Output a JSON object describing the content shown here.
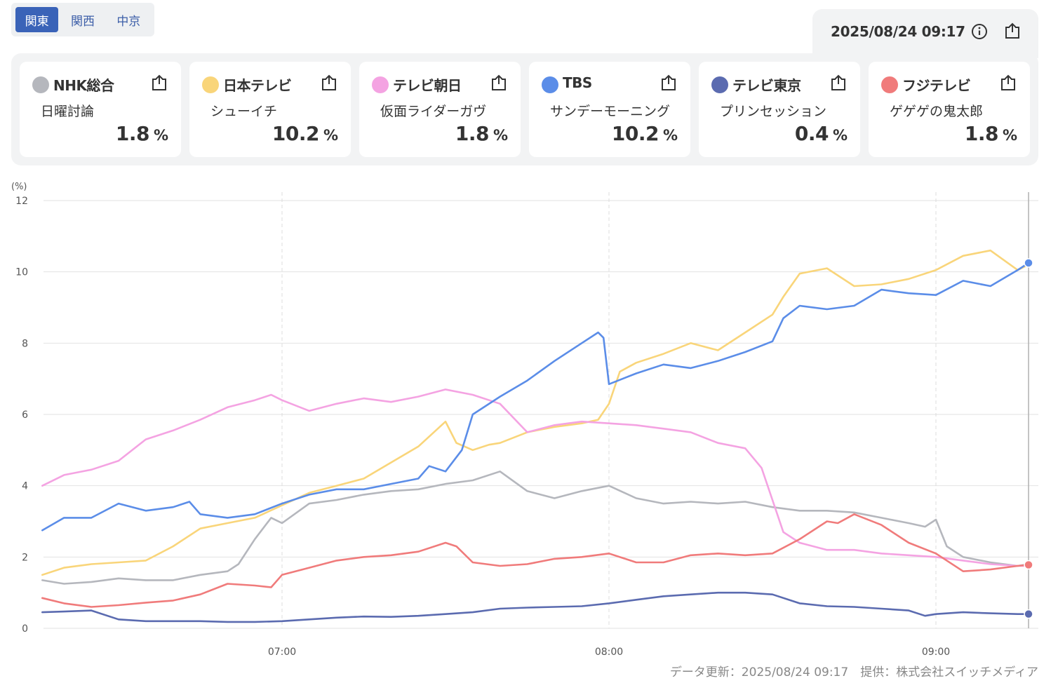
{
  "regions": [
    {
      "label": "関東",
      "active": true
    },
    {
      "label": "関西",
      "active": false
    },
    {
      "label": "中京",
      "active": false
    }
  ],
  "header": {
    "timestamp": "2025/08/24 09:17",
    "info_icon": "info-circle-icon",
    "export_icon": "export-icon"
  },
  "channels": [
    {
      "name": "NHK総合",
      "program": "日曜討論",
      "rating": "1.8",
      "unit": "%",
      "color": "#b5b7bd"
    },
    {
      "name": "日本テレビ",
      "program": "シューイチ",
      "rating": "10.2",
      "unit": "%",
      "color": "#f9d57a"
    },
    {
      "name": "テレビ朝日",
      "program": "仮面ライダーガヴ",
      "rating": "1.8",
      "unit": "%",
      "color": "#f4a3e2"
    },
    {
      "name": "TBS",
      "program": "サンデーモーニング",
      "rating": "10.2",
      "unit": "%",
      "color": "#5b8de8"
    },
    {
      "name": "テレビ東京",
      "program": "プリンセッション",
      "rating": "0.4",
      "unit": "%",
      "color": "#5b6bb0"
    },
    {
      "name": "フジテレビ",
      "program": "ゲゲゲの鬼太郎",
      "rating": "1.8",
      "unit": "%",
      "color": "#f07b7b"
    }
  ],
  "chart_data": {
    "type": "line",
    "y_unit": "(%)",
    "ylim": [
      0,
      12
    ],
    "y_ticks": [
      "0",
      "2",
      "4",
      "6",
      "8",
      "10",
      "12"
    ],
    "x_ticks": [
      {
        "label": "07:00",
        "minute": 420
      },
      {
        "label": "08:00",
        "minute": 480
      },
      {
        "label": "09:00",
        "minute": 540
      }
    ],
    "xlim_minutes": [
      376,
      557
    ],
    "grid": true,
    "series": [
      {
        "name": "NHK総合",
        "color": "#b5b7bd",
        "x": [
          376,
          380,
          385,
          390,
          395,
          400,
          405,
          410,
          412,
          415,
          418,
          420,
          425,
          430,
          435,
          440,
          445,
          450,
          455,
          460,
          465,
          470,
          475,
          480,
          485,
          490,
          495,
          500,
          505,
          510,
          515,
          520,
          525,
          530,
          535,
          538,
          540,
          542,
          545,
          550,
          555,
          557
        ],
        "y": [
          1.35,
          1.25,
          1.3,
          1.4,
          1.35,
          1.35,
          1.5,
          1.6,
          1.8,
          2.5,
          3.1,
          2.95,
          3.5,
          3.6,
          3.75,
          3.85,
          3.9,
          4.05,
          4.15,
          4.4,
          3.85,
          3.65,
          3.85,
          4.0,
          3.65,
          3.5,
          3.55,
          3.5,
          3.55,
          3.4,
          3.3,
          3.3,
          3.25,
          3.1,
          2.95,
          2.85,
          3.05,
          2.3,
          2.0,
          1.85,
          1.75,
          1.8
        ]
      },
      {
        "name": "日本テレビ",
        "color": "#f9d57a",
        "x": [
          376,
          380,
          385,
          390,
          395,
          400,
          405,
          410,
          415,
          420,
          425,
          430,
          435,
          440,
          445,
          450,
          452,
          455,
          458,
          460,
          465,
          470,
          475,
          478,
          480,
          482,
          485,
          490,
          495,
          500,
          505,
          510,
          512,
          515,
          520,
          525,
          530,
          535,
          540,
          545,
          550,
          555,
          557
        ],
        "y": [
          1.5,
          1.7,
          1.8,
          1.85,
          1.9,
          2.3,
          2.8,
          2.95,
          3.1,
          3.45,
          3.8,
          4.0,
          4.2,
          4.65,
          5.1,
          5.8,
          5.2,
          5.0,
          5.15,
          5.2,
          5.5,
          5.65,
          5.75,
          5.85,
          6.3,
          7.2,
          7.45,
          7.7,
          8.0,
          7.8,
          8.3,
          8.8,
          9.3,
          9.95,
          10.1,
          9.6,
          9.65,
          9.8,
          10.05,
          10.45,
          10.6,
          10.05,
          10.2
        ]
      },
      {
        "name": "テレビ朝日",
        "color": "#f4a3e2",
        "x": [
          376,
          380,
          385,
          390,
          395,
          400,
          405,
          410,
          415,
          418,
          420,
          425,
          430,
          435,
          440,
          445,
          450,
          455,
          460,
          465,
          470,
          475,
          480,
          485,
          490,
          495,
          500,
          505,
          508,
          510,
          512,
          515,
          520,
          525,
          530,
          535,
          540,
          545,
          550,
          555,
          557
        ],
        "y": [
          4.0,
          4.3,
          4.45,
          4.7,
          5.3,
          5.55,
          5.85,
          6.2,
          6.4,
          6.55,
          6.4,
          6.1,
          6.3,
          6.45,
          6.35,
          6.5,
          6.7,
          6.55,
          6.3,
          5.5,
          5.7,
          5.8,
          5.75,
          5.7,
          5.6,
          5.5,
          5.2,
          5.05,
          4.5,
          3.6,
          2.7,
          2.4,
          2.2,
          2.2,
          2.1,
          2.05,
          2.0,
          1.9,
          1.8,
          1.75,
          1.75
        ]
      },
      {
        "name": "TBS",
        "color": "#5b8de8",
        "x": [
          376,
          380,
          385,
          390,
          395,
          400,
          403,
          405,
          410,
          415,
          420,
          425,
          430,
          435,
          440,
          445,
          447,
          450,
          453,
          455,
          460,
          465,
          470,
          475,
          478,
          479,
          480,
          485,
          490,
          495,
          500,
          505,
          510,
          512,
          515,
          520,
          525,
          530,
          535,
          540,
          545,
          550,
          555,
          557
        ],
        "y": [
          2.75,
          3.1,
          3.1,
          3.5,
          3.3,
          3.4,
          3.55,
          3.2,
          3.1,
          3.2,
          3.5,
          3.75,
          3.9,
          3.9,
          4.05,
          4.2,
          4.55,
          4.4,
          5.0,
          6.0,
          6.5,
          6.95,
          7.5,
          8.0,
          8.3,
          8.15,
          6.85,
          7.15,
          7.4,
          7.3,
          7.5,
          7.75,
          8.05,
          8.7,
          9.05,
          8.95,
          9.05,
          9.5,
          9.4,
          9.35,
          9.75,
          9.6,
          10.05,
          10.25
        ]
      },
      {
        "name": "テレビ東京",
        "color": "#5b6bb0",
        "x": [
          376,
          380,
          385,
          390,
          395,
          400,
          405,
          410,
          415,
          420,
          425,
          430,
          435,
          440,
          445,
          450,
          455,
          460,
          465,
          470,
          475,
          480,
          485,
          490,
          495,
          500,
          505,
          510,
          515,
          520,
          525,
          530,
          535,
          538,
          540,
          545,
          550,
          555,
          557
        ],
        "y": [
          0.45,
          0.47,
          0.5,
          0.25,
          0.2,
          0.2,
          0.2,
          0.18,
          0.18,
          0.2,
          0.25,
          0.3,
          0.33,
          0.32,
          0.35,
          0.4,
          0.45,
          0.55,
          0.58,
          0.6,
          0.62,
          0.7,
          0.8,
          0.9,
          0.95,
          1.0,
          1.0,
          0.95,
          0.7,
          0.62,
          0.6,
          0.55,
          0.5,
          0.35,
          0.4,
          0.45,
          0.42,
          0.4,
          0.4
        ]
      },
      {
        "name": "フジテレビ",
        "color": "#f07b7b",
        "x": [
          376,
          380,
          385,
          390,
          395,
          400,
          405,
          410,
          415,
          418,
          420,
          425,
          430,
          435,
          440,
          445,
          450,
          452,
          455,
          460,
          465,
          470,
          475,
          480,
          485,
          490,
          495,
          500,
          505,
          510,
          515,
          520,
          522,
          525,
          530,
          535,
          540,
          545,
          550,
          555,
          557
        ],
        "y": [
          0.85,
          0.7,
          0.6,
          0.65,
          0.72,
          0.78,
          0.95,
          1.25,
          1.2,
          1.15,
          1.5,
          1.7,
          1.9,
          2.0,
          2.05,
          2.15,
          2.4,
          2.3,
          1.85,
          1.75,
          1.8,
          1.95,
          2.0,
          2.1,
          1.85,
          1.85,
          2.05,
          2.1,
          2.05,
          2.1,
          2.5,
          3.0,
          2.95,
          3.2,
          2.9,
          2.4,
          2.1,
          1.6,
          1.65,
          1.75,
          1.78
        ]
      }
    ]
  },
  "footer": {
    "text": "データ更新：2025/08/24 09:17　提供：株式会社スイッチメディア"
  }
}
